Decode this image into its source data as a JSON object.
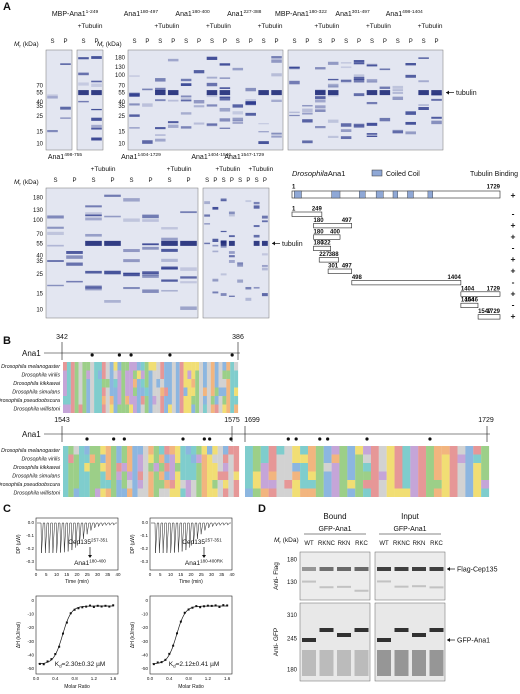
{
  "mr": {
    "m": "M",
    "r": "r",
    "unit": " (kDa)"
  },
  "panel_a": {
    "label": "A",
    "s": "S",
    "p": "P",
    "plus_tubulin": "+Tubulin",
    "tubulin": "tubulin",
    "gels_top": [
      {
        "name": "MBP-Ana1",
        "range": "1-249"
      },
      {
        "name": "Ana1",
        "range": "180-497"
      },
      {
        "name": "Ana1",
        "range": "180-400"
      },
      {
        "name": "Ana1",
        "range": "227-388"
      },
      {
        "name": "MBP-Ana1",
        "range": "180-322"
      },
      {
        "name": "Ana1",
        "range": "301-497"
      },
      {
        "name": "Ana1",
        "range": "498-1404"
      }
    ],
    "gels_bottom": [
      {
        "name": "Ana1",
        "range": "498-755"
      },
      {
        "name": "Ana1",
        "range": "1404-1729"
      },
      {
        "name": "Ana1",
        "range": "1404-1546"
      },
      {
        "name": "Ana1",
        "range": "1547-1729"
      }
    ],
    "markers_small": [
      70,
      55,
      40,
      35,
      25,
      15,
      10
    ],
    "markers": [
      180,
      130,
      100,
      70,
      55,
      40,
      35,
      25,
      15,
      10
    ],
    "diagram": {
      "species": "Drosophila",
      "protein": "Ana1",
      "legend": "Coiled Coil",
      "column": "Tubulin Binding",
      "full": {
        "start": 1,
        "end": 1729,
        "binding": "+"
      },
      "constructs": [
        {
          "start": 1,
          "end": 249,
          "binding": "-"
        },
        {
          "start": 180,
          "end": 497,
          "binding": "+"
        },
        {
          "start": 180,
          "end": 400,
          "binding": "+"
        },
        {
          "start": 180,
          "end": 322,
          "binding": "-"
        },
        {
          "start": 227,
          "end": 388,
          "binding": "+"
        },
        {
          "start": 301,
          "end": 497,
          "binding": "+"
        },
        {
          "start": 498,
          "end": 1404,
          "binding": "-"
        },
        {
          "start": 1404,
          "end": 1729,
          "binding": "+"
        },
        {
          "start": 1404,
          "end": 1546,
          "binding": "-"
        },
        {
          "start": 1547,
          "end": 1729,
          "binding": "+"
        }
      ]
    }
  },
  "panel_b": {
    "label": "B",
    "protein": "Ana1",
    "species": [
      "Drosophila melanogaster",
      "Drosophila virilis",
      "Drosophila kikkawai",
      "Drosophila simulans",
      "Drosophila pseudoobscura",
      "Drosophila willistoni"
    ],
    "block1": {
      "start": 342,
      "end": 386
    },
    "block2": {
      "start": 1543,
      "end": 1575,
      "start2": 1699,
      "end2": 1729
    }
  },
  "panel_c": {
    "label": "C",
    "dp": "DP (µW)",
    "time": "Time (min)",
    "dh": "ΔH (kJ/mol)",
    "ratio": "Molar Ratio",
    "time_ticks": [
      0,
      5,
      10,
      15,
      20,
      25,
      30,
      35,
      40
    ],
    "dp_ticks": [
      "0.0",
      "-0.1",
      "-0.2",
      "-0.3"
    ],
    "ratio_ticks": [
      "0.0",
      "0.4",
      "0.8",
      "1.2",
      "1.6"
    ],
    "dh_ticks": [
      0,
      -10,
      -20,
      -30,
      -40,
      -50
    ],
    "kd_k": "K",
    "kd_d": "d",
    "experiments": [
      {
        "ligand": "Cep135",
        "ligand_range": "257-351",
        "analyte": "Ana1",
        "analyte_range": "180-400",
        "kd": "=2.30±0.32 µM"
      },
      {
        "ligand": "Cep135",
        "ligand_range": "257-351",
        "analyte": "Ana1",
        "analyte_range": "180-400RK",
        "kd": "=2.12±0.41 µM"
      }
    ]
  },
  "panel_d": {
    "label": "D",
    "bound": "Bound",
    "input": "Input",
    "construct": "GFP-Ana1",
    "lanes": [
      "WT",
      "RKNC",
      "RKN",
      "RKC"
    ],
    "anti_flag": "Anti- Flag",
    "anti_gfp": "Anti- GFP",
    "flag_markers": [
      180,
      130
    ],
    "gfp_markers": [
      310,
      245,
      180
    ],
    "flag_band": "Flag-Cep135",
    "gfp_band": "GFP-Ana1"
  }
}
